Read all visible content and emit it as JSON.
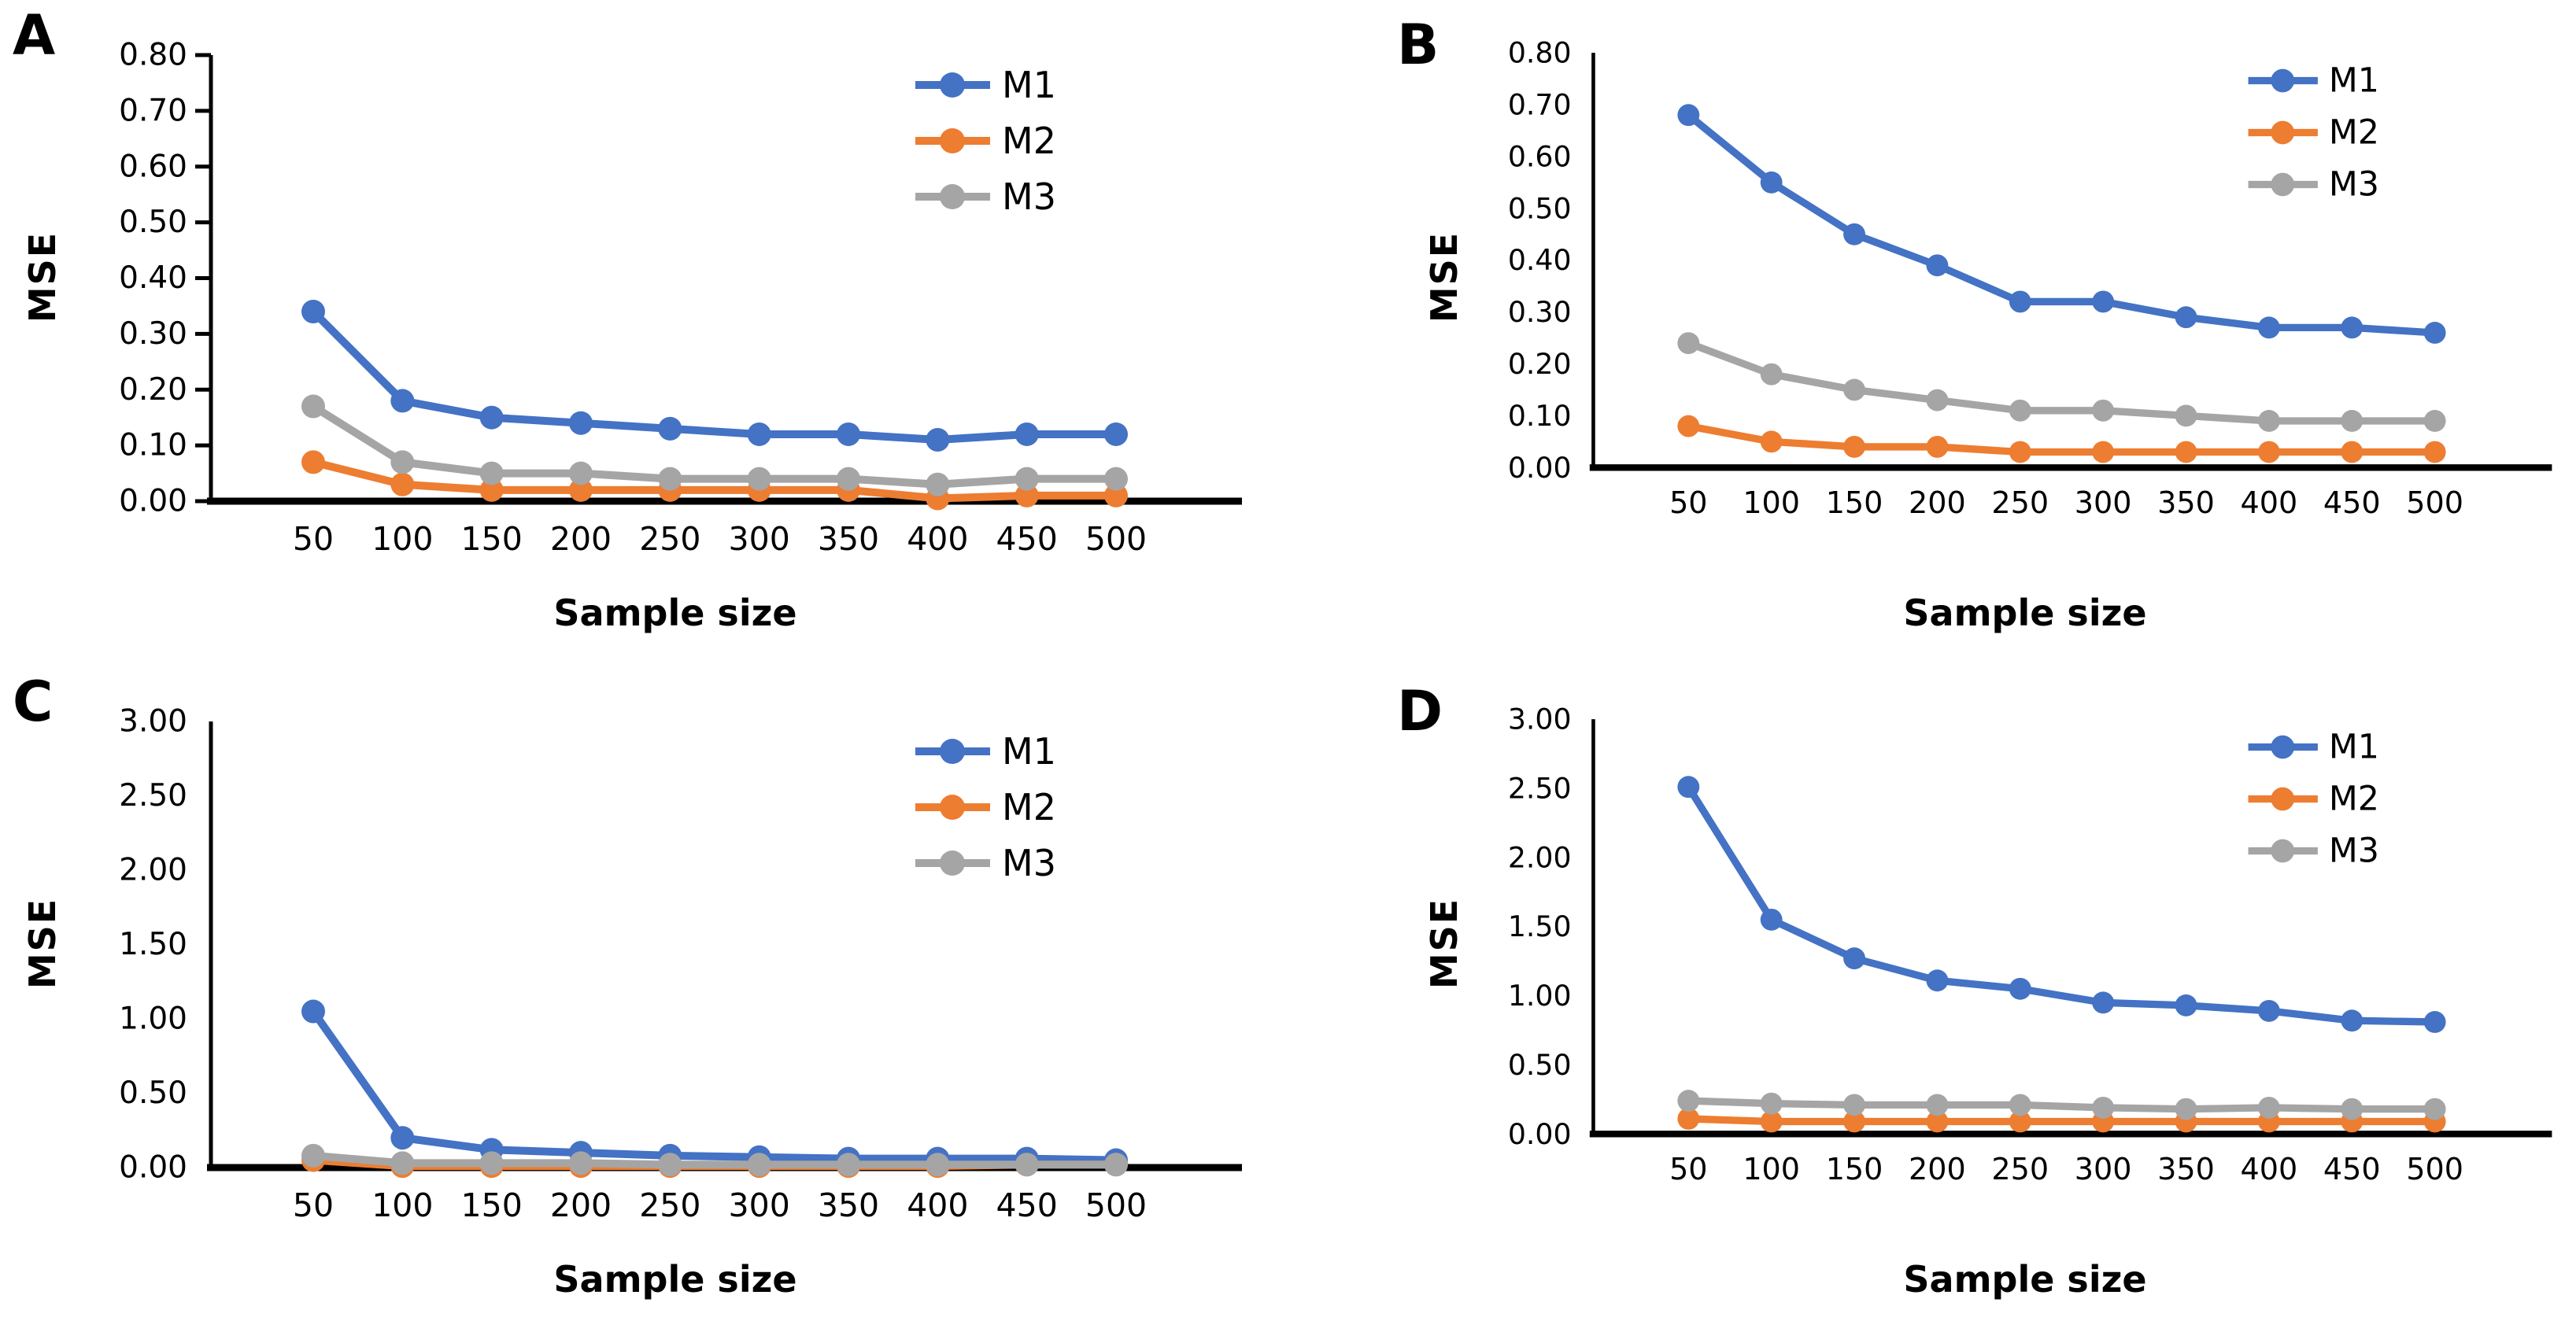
{
  "chart_data": [
    {
      "type": "line",
      "panel_label": "A",
      "title": "",
      "xlabel": "Sample size",
      "ylabel": "MSE",
      "x": [
        50,
        100,
        150,
        200,
        250,
        300,
        350,
        400,
        450,
        500
      ],
      "ylim": [
        0,
        0.8
      ],
      "yticks": [
        "0.00",
        "0.10",
        "0.20",
        "0.30",
        "0.40",
        "0.50",
        "0.60",
        "0.70",
        "0.80"
      ],
      "y_axis_tick_marks": true,
      "grid": false,
      "legend_position": "top-right",
      "series": [
        {
          "name": "M1",
          "color": "#4472C4",
          "values": [
            0.34,
            0.18,
            0.15,
            0.14,
            0.13,
            0.12,
            0.12,
            0.11,
            0.12,
            0.12
          ]
        },
        {
          "name": "M2",
          "color": "#ED7D31",
          "values": [
            0.07,
            0.03,
            0.02,
            0.02,
            0.02,
            0.02,
            0.02,
            0.005,
            0.01,
            0.01
          ]
        },
        {
          "name": "M3",
          "color": "#A5A5A5",
          "values": [
            0.17,
            0.07,
            0.05,
            0.05,
            0.04,
            0.04,
            0.04,
            0.03,
            0.04,
            0.04
          ]
        }
      ]
    },
    {
      "type": "line",
      "panel_label": "B",
      "title": "",
      "xlabel": "Sample size",
      "ylabel": "MSE",
      "x": [
        50,
        100,
        150,
        200,
        250,
        300,
        350,
        400,
        450,
        500
      ],
      "ylim": [
        0,
        0.8
      ],
      "yticks": [
        "0.00",
        "0.10",
        "0.20",
        "0.30",
        "0.40",
        "0.50",
        "0.60",
        "0.70",
        "0.80"
      ],
      "y_axis_tick_marks": false,
      "grid": false,
      "legend_position": "top-right",
      "series": [
        {
          "name": "M1",
          "color": "#4472C4",
          "values": [
            0.68,
            0.55,
            0.45,
            0.39,
            0.32,
            0.32,
            0.29,
            0.27,
            0.27,
            0.26
          ]
        },
        {
          "name": "M2",
          "color": "#ED7D31",
          "values": [
            0.08,
            0.05,
            0.04,
            0.04,
            0.03,
            0.03,
            0.03,
            0.03,
            0.03,
            0.03
          ]
        },
        {
          "name": "M3",
          "color": "#A5A5A5",
          "values": [
            0.24,
            0.18,
            0.15,
            0.13,
            0.11,
            0.11,
            0.1,
            0.09,
            0.09,
            0.09
          ]
        }
      ]
    },
    {
      "type": "line",
      "panel_label": "C",
      "title": "",
      "xlabel": "Sample size",
      "ylabel": "MSE",
      "x": [
        50,
        100,
        150,
        200,
        250,
        300,
        350,
        400,
        450,
        500
      ],
      "ylim": [
        0,
        3.0
      ],
      "yticks": [
        "0.00",
        "0.50",
        "1.00",
        "1.50",
        "2.00",
        "2.50",
        "3.00"
      ],
      "y_axis_tick_marks": false,
      "grid": false,
      "legend_position": "top-right",
      "series": [
        {
          "name": "M1",
          "color": "#4472C4",
          "values": [
            1.05,
            0.2,
            0.12,
            0.1,
            0.08,
            0.07,
            0.06,
            0.06,
            0.06,
            0.05
          ]
        },
        {
          "name": "M2",
          "color": "#ED7D31",
          "values": [
            0.05,
            0.01,
            0.01,
            0.01,
            0.01,
            0.01,
            0.01,
            0.01,
            0.02,
            0.02
          ]
        },
        {
          "name": "M3",
          "color": "#A5A5A5",
          "values": [
            0.08,
            0.03,
            0.03,
            0.03,
            0.02,
            0.02,
            0.02,
            0.02,
            0.02,
            0.02
          ]
        }
      ]
    },
    {
      "type": "line",
      "panel_label": "D",
      "title": "",
      "xlabel": "Sample size",
      "ylabel": "MSE",
      "x": [
        50,
        100,
        150,
        200,
        250,
        300,
        350,
        400,
        450,
        500
      ],
      "ylim": [
        0,
        3.0
      ],
      "yticks": [
        "0.00",
        "0.50",
        "1.00",
        "1.50",
        "2.00",
        "2.50",
        "3.00"
      ],
      "y_axis_tick_marks": false,
      "grid": false,
      "legend_position": "top-right",
      "series": [
        {
          "name": "M1",
          "color": "#4472C4",
          "values": [
            2.51,
            1.55,
            1.27,
            1.11,
            1.05,
            0.95,
            0.93,
            0.89,
            0.82,
            0.81
          ]
        },
        {
          "name": "M2",
          "color": "#ED7D31",
          "values": [
            0.11,
            0.09,
            0.09,
            0.09,
            0.09,
            0.09,
            0.09,
            0.09,
            0.09,
            0.09
          ]
        },
        {
          "name": "M3",
          "color": "#A5A5A5",
          "values": [
            0.24,
            0.22,
            0.21,
            0.21,
            0.21,
            0.19,
            0.18,
            0.19,
            0.18,
            0.18
          ]
        }
      ]
    }
  ]
}
